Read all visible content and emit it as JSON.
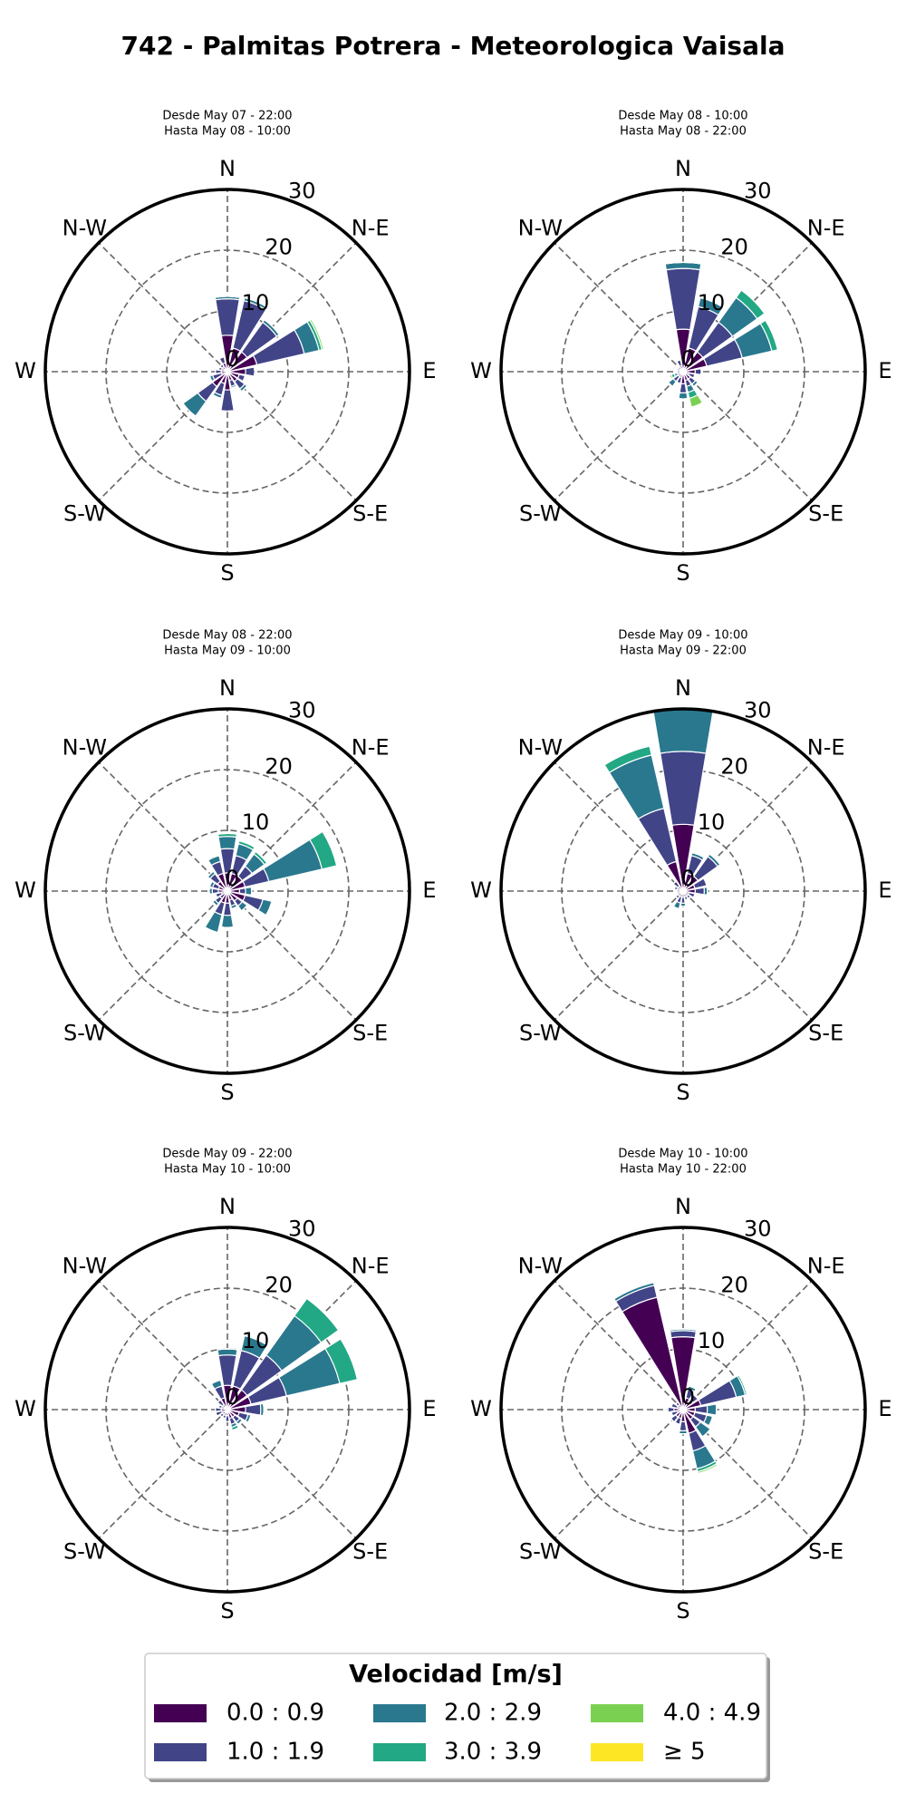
{
  "title": "742 - Palmitas Potrera - Meteorologica Vaisala",
  "legend_title": "Velocidad [m/s]",
  "chart_data": [
    {
      "type": "windrose",
      "subtitle": [
        "Desde May 07 - 22:00",
        "Hasta May 08 - 10:00"
      ],
      "categories": [
        "N",
        null,
        "N-E",
        null,
        "E",
        null,
        "S-E",
        null,
        "S",
        null,
        "S-W",
        null,
        "W",
        null,
        "N-W",
        null
      ],
      "rlim": [
        0,
        30
      ],
      "rticks": [
        0,
        10,
        20,
        30
      ],
      "series": [
        {
          "name": "0.0 : 0.9",
          "color": "#440154",
          "values": [
            6,
            4,
            4,
            5,
            3,
            2,
            2,
            1.5,
            3,
            2,
            3,
            1,
            1,
            1,
            1,
            1.5
          ]
        },
        {
          "name": "1.0 : 1.9",
          "color": "#414487",
          "values": [
            6,
            8,
            6,
            8,
            1.5,
            1,
            1.5,
            1,
            3.5,
            2,
            3,
            1.5,
            1,
            0.5,
            0.5,
            1
          ]
        },
        {
          "name": "2.0 : 2.9",
          "color": "#2a788e",
          "values": [
            0.4,
            0.5,
            0.5,
            2.5,
            0,
            0,
            0.5,
            0.3,
            0,
            0.5,
            3,
            0.5,
            0,
            0,
            0,
            0
          ]
        },
        {
          "name": "3.0 : 3.9",
          "color": "#22a884",
          "values": [
            0,
            0,
            0,
            0.5,
            0,
            0,
            0,
            0,
            0,
            0,
            0,
            0,
            0,
            0,
            0,
            0
          ]
        },
        {
          "name": "4.0 : 4.9",
          "color": "#7ad151",
          "values": [
            0,
            0,
            0,
            0.3,
            0,
            0,
            0,
            0,
            0,
            0,
            0,
            0,
            0,
            0,
            0,
            0
          ]
        },
        {
          "name": "≥ 5",
          "color": "#fde725",
          "values": [
            0,
            0,
            0,
            0,
            0,
            0,
            0,
            0,
            0,
            0,
            0,
            0,
            0,
            0,
            0,
            0
          ]
        }
      ]
    },
    {
      "type": "windrose",
      "subtitle": [
        "Desde May 08 - 10:00",
        "Hasta May 08 - 22:00"
      ],
      "categories": [
        "N",
        null,
        "N-E",
        null,
        "E",
        null,
        "S-E",
        null,
        "S",
        null,
        "S-W",
        null,
        "W",
        null,
        "N-W",
        null
      ],
      "rlim": [
        0,
        30
      ],
      "rticks": [
        0,
        10,
        20,
        30
      ],
      "series": [
        {
          "name": "0.0 : 0.9",
          "color": "#440154",
          "values": [
            7,
            4,
            4,
            4,
            2,
            1,
            1.5,
            1.5,
            2,
            1,
            1,
            0.5,
            0.5,
            0.5,
            0.5,
            1
          ]
        },
        {
          "name": "1.0 : 1.9",
          "color": "#414487",
          "values": [
            10,
            7,
            6,
            6,
            1,
            1,
            1,
            1,
            1.5,
            1,
            1,
            0.5,
            0.5,
            0.5,
            0.5,
            1
          ]
        },
        {
          "name": "2.0 : 2.9",
          "color": "#2a788e",
          "values": [
            1,
            1.5,
            5,
            5,
            0,
            0,
            0.5,
            1,
            1,
            0,
            1,
            0.5,
            0,
            0,
            0,
            0
          ]
        },
        {
          "name": "3.0 : 3.9",
          "color": "#22a884",
          "values": [
            0,
            0,
            1.5,
            1,
            0,
            0,
            0,
            1,
            0,
            0,
            0,
            0.5,
            0,
            0,
            0,
            0
          ]
        },
        {
          "name": "4.0 : 4.9",
          "color": "#7ad151",
          "values": [
            0,
            0,
            0,
            0,
            0,
            0,
            0,
            1.5,
            0,
            0,
            0,
            0.3,
            0,
            0,
            0,
            0
          ]
        },
        {
          "name": "≥ 5",
          "color": "#fde725",
          "values": [
            0,
            0,
            0,
            0,
            0,
            0,
            0,
            0,
            0,
            0,
            0,
            0,
            0,
            0,
            0,
            0
          ]
        }
      ]
    },
    {
      "type": "windrose",
      "subtitle": [
        "Desde May 08 - 22:00",
        "Hasta May 09 - 10:00"
      ],
      "categories": [
        "N",
        null,
        "N-E",
        null,
        "E",
        null,
        "S-E",
        null,
        "S",
        null,
        "S-W",
        null,
        "W",
        null,
        "N-W",
        null
      ],
      "rlim": [
        0,
        30
      ],
      "rticks": [
        0,
        10,
        20,
        30
      ],
      "series": [
        {
          "name": "0.0 : 0.9",
          "color": "#440154",
          "values": [
            3,
            3,
            3,
            3,
            2,
            3,
            2,
            1.5,
            2,
            2,
            1.5,
            1,
            1.5,
            1.5,
            2,
            3
          ]
        },
        {
          "name": "1.0 : 1.9",
          "color": "#414487",
          "values": [
            4,
            3,
            2,
            4,
            1,
            3,
            1,
            1,
            2,
            2,
            1,
            1,
            1,
            1,
            1.5,
            2
          ]
        },
        {
          "name": "2.0 : 2.9",
          "color": "#2a788e",
          "values": [
            2,
            2,
            2.5,
            9,
            1,
            1.5,
            1,
            0.5,
            2,
            3,
            0.5,
            0,
            0.5,
            0.5,
            0.5,
            1
          ]
        },
        {
          "name": "3.0 : 3.9",
          "color": "#22a884",
          "values": [
            0.5,
            0.5,
            0.5,
            2.5,
            0,
            0,
            0,
            0,
            0,
            0,
            0,
            0,
            0,
            0,
            0,
            0
          ]
        },
        {
          "name": "4.0 : 4.9",
          "color": "#7ad151",
          "values": [
            0,
            0,
            0,
            0,
            0,
            0,
            0,
            0,
            0,
            0,
            0,
            0,
            0,
            0,
            0,
            0
          ]
        },
        {
          "name": "≥ 5",
          "color": "#fde725",
          "values": [
            0,
            0,
            0,
            0,
            0,
            0,
            0,
            0,
            0,
            0,
            0,
            0,
            0,
            0,
            0,
            0
          ]
        }
      ]
    },
    {
      "type": "windrose",
      "subtitle": [
        "Desde May 09 - 10:00",
        "Hasta May 09 - 22:00"
      ],
      "categories": [
        "N",
        null,
        "N-E",
        null,
        "E",
        null,
        "S-E",
        null,
        "S",
        null,
        "S-W",
        null,
        "W",
        null,
        "N-W",
        null
      ],
      "rlim": [
        0,
        30
      ],
      "rticks": [
        0,
        10,
        20,
        30
      ],
      "series": [
        {
          "name": "0.0 : 0.9",
          "color": "#440154",
          "values": [
            11,
            3,
            3,
            2,
            2,
            1,
            1,
            1,
            1,
            1,
            1,
            0.5,
            0.5,
            1,
            1,
            5
          ]
        },
        {
          "name": "1.0 : 1.9",
          "color": "#414487",
          "values": [
            12,
            3,
            4,
            2,
            1.5,
            1,
            0.5,
            0.5,
            1,
            1,
            0.5,
            0.5,
            0.5,
            0.5,
            1,
            9
          ]
        },
        {
          "name": "2.0 : 2.9",
          "color": "#2a788e",
          "values": [
            7,
            0.5,
            0.5,
            0,
            0.5,
            0,
            0,
            0,
            0.5,
            1,
            0,
            0,
            0,
            0,
            0,
            9
          ]
        },
        {
          "name": "3.0 : 3.9",
          "color": "#22a884",
          "values": [
            0,
            0,
            0,
            0,
            0,
            0,
            0,
            0,
            0,
            0,
            0,
            0,
            0,
            0,
            0,
            1.5
          ]
        },
        {
          "name": "4.0 : 4.9",
          "color": "#7ad151",
          "values": [
            0,
            0,
            0,
            0,
            0,
            0,
            0,
            0,
            0,
            0,
            0,
            0,
            0,
            0,
            0,
            0
          ]
        },
        {
          "name": "≥ 5",
          "color": "#fde725",
          "values": [
            0,
            0,
            0,
            0,
            0,
            0,
            0,
            0,
            0,
            0,
            0,
            0,
            0,
            0,
            0,
            0
          ]
        }
      ]
    },
    {
      "type": "windrose",
      "subtitle": [
        "Desde May 09 - 22:00",
        "Hasta May 10 - 10:00"
      ],
      "categories": [
        "N",
        null,
        "N-E",
        null,
        "E",
        null,
        "S-E",
        null,
        "S",
        null,
        "S-W",
        null,
        "W",
        null,
        "N-W",
        null
      ],
      "rlim": [
        0,
        30
      ],
      "rticks": [
        0,
        10,
        20,
        30
      ],
      "series": [
        {
          "name": "0.0 : 0.9",
          "color": "#440154",
          "values": [
            4,
            4,
            4,
            4,
            3,
            2,
            1.5,
            1.5,
            1,
            1,
            1,
            1,
            1,
            1,
            1,
            2
          ]
        },
        {
          "name": "1.0 : 1.9",
          "color": "#414487",
          "values": [
            5,
            6,
            7,
            6,
            2.5,
            1.5,
            1,
            1,
            1,
            0.5,
            0.5,
            1,
            1,
            0.5,
            1,
            2
          ]
        },
        {
          "name": "2.0 : 2.9",
          "color": "#2a788e",
          "values": [
            1,
            2.5,
            8,
            9,
            0.5,
            0.5,
            0.5,
            0.5,
            0,
            0,
            0,
            0,
            0,
            0,
            0,
            1
          ]
        },
        {
          "name": "3.0 : 3.9",
          "color": "#22a884",
          "values": [
            0,
            0,
            3.5,
            3,
            0,
            0,
            0,
            0.5,
            0,
            0,
            0,
            0,
            0,
            0,
            0,
            0
          ]
        },
        {
          "name": "4.0 : 4.9",
          "color": "#7ad151",
          "values": [
            0,
            0,
            0,
            0,
            0,
            0,
            0,
            0,
            0,
            0,
            0,
            0,
            0,
            0,
            0,
            0
          ]
        },
        {
          "name": "≥ 5",
          "color": "#fde725",
          "values": [
            0,
            0,
            0,
            0,
            0,
            0,
            0,
            0,
            0,
            0,
            0,
            0,
            0,
            0,
            0,
            0
          ]
        }
      ]
    },
    {
      "type": "windrose",
      "subtitle": [
        "Desde May 10 - 10:00",
        "Hasta May 10 - 22:00"
      ],
      "categories": [
        "N",
        null,
        "N-E",
        null,
        "E",
        null,
        "S-E",
        null,
        "S",
        null,
        "S-W",
        null,
        "W",
        null,
        "N-W",
        null
      ],
      "rlim": [
        0,
        30
      ],
      "rticks": [
        0,
        10,
        20,
        30
      ],
      "series": [
        {
          "name": "0.0 : 0.9",
          "color": "#440154",
          "values": [
            12,
            2,
            2,
            3,
            2,
            2,
            2,
            4,
            2,
            1.5,
            1.5,
            1,
            1.5,
            1,
            1,
            19
          ]
        },
        {
          "name": "1.0 : 1.9",
          "color": "#414487",
          "values": [
            1,
            1.5,
            1,
            6,
            2,
            2,
            1.5,
            3,
            1.5,
            1,
            1,
            1,
            1,
            1,
            0.5,
            2
          ]
        },
        {
          "name": "2.0 : 2.9",
          "color": "#2a788e",
          "values": [
            0.3,
            0.5,
            0,
            1.5,
            1.5,
            1,
            2,
            3,
            0.5,
            0,
            0,
            0,
            0,
            0,
            0,
            0.5
          ]
        },
        {
          "name": "3.0 : 3.9",
          "color": "#22a884",
          "values": [
            0,
            0,
            0,
            0.3,
            0,
            0,
            0,
            0.5,
            0,
            0,
            0,
            0,
            0,
            0,
            0,
            0
          ]
        },
        {
          "name": "4.0 : 4.9",
          "color": "#7ad151",
          "values": [
            0,
            0,
            0,
            0,
            0,
            0,
            0,
            0.3,
            0,
            0,
            0,
            0,
            0,
            0,
            0,
            0
          ]
        },
        {
          "name": "≥ 5",
          "color": "#fde725",
          "values": [
            0,
            0,
            0,
            0,
            0,
            0,
            0,
            0,
            0,
            0,
            0,
            0,
            0,
            0,
            0,
            0
          ]
        }
      ]
    }
  ]
}
